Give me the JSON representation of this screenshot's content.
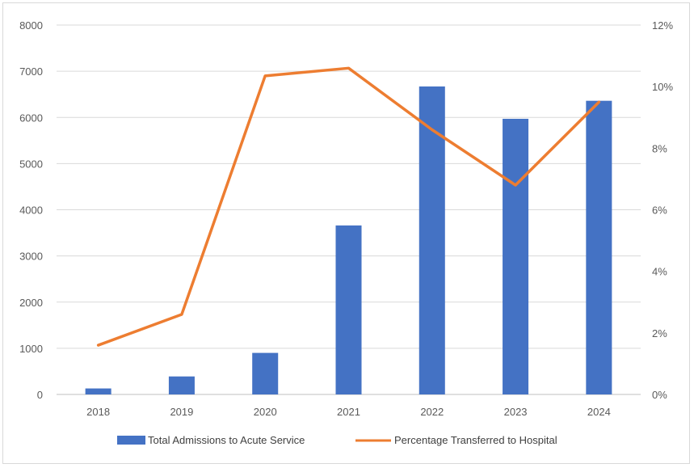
{
  "chart_data": {
    "type": "bar+line",
    "categories": [
      "2018",
      "2019",
      "2020",
      "2021",
      "2022",
      "2023",
      "2024"
    ],
    "series": [
      {
        "name": "Total Admissions to Acute Service",
        "kind": "bar",
        "axis": "left",
        "color": "#4472c4",
        "values": [
          130,
          390,
          900,
          3660,
          6670,
          5970,
          6360
        ]
      },
      {
        "name": "Percentage Transferred to Hospital",
        "kind": "line",
        "axis": "right",
        "color": "#ed7d31",
        "values": [
          1.6,
          2.6,
          10.35,
          10.6,
          8.6,
          6.8,
          9.5
        ]
      }
    ],
    "y_left": {
      "min": 0,
      "max": 8000,
      "ticks": [
        "0",
        "1000",
        "2000",
        "3000",
        "4000",
        "5000",
        "6000",
        "7000",
        "8000"
      ]
    },
    "y_right": {
      "min": 0,
      "max": 12,
      "ticks": [
        "0%",
        "2%",
        "4%",
        "6%",
        "8%",
        "10%",
        "12%"
      ]
    },
    "grid": true,
    "legend_position": "bottom"
  }
}
